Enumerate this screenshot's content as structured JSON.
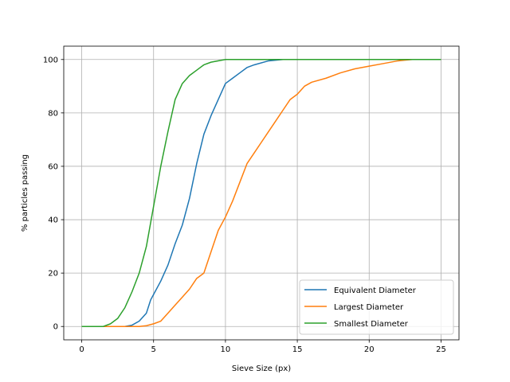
{
  "chart_data": {
    "type": "line",
    "xlabel": "Sieve Size (px)",
    "ylabel": "% particles passing",
    "xlim": [
      -1.25,
      26.25
    ],
    "ylim": [
      -5,
      105
    ],
    "xticks": [
      0,
      5,
      10,
      15,
      20,
      25
    ],
    "yticks": [
      0,
      20,
      40,
      60,
      80,
      100
    ],
    "grid": true,
    "legend_position": "lower right",
    "series": [
      {
        "name": "Equivalent Diameter",
        "color": "#1f77b4",
        "points": [
          [
            0,
            0
          ],
          [
            1,
            0
          ],
          [
            2,
            0
          ],
          [
            3,
            0
          ],
          [
            3.5,
            0.5
          ],
          [
            4,
            2
          ],
          [
            4.5,
            5
          ],
          [
            4.8,
            10
          ],
          [
            5,
            12
          ],
          [
            5.5,
            17
          ],
          [
            6,
            23
          ],
          [
            6.5,
            31
          ],
          [
            7,
            38
          ],
          [
            7.5,
            48
          ],
          [
            8,
            61
          ],
          [
            8.5,
            72
          ],
          [
            9,
            79
          ],
          [
            9.5,
            85
          ],
          [
            10,
            91
          ],
          [
            10.5,
            93
          ],
          [
            11,
            95
          ],
          [
            11.5,
            97
          ],
          [
            12,
            98
          ],
          [
            13,
            99.5
          ],
          [
            14,
            100
          ],
          [
            25,
            100
          ]
        ]
      },
      {
        "name": "Largest Diameter",
        "color": "#ff7f0e",
        "points": [
          [
            0,
            0
          ],
          [
            2,
            0
          ],
          [
            4,
            0
          ],
          [
            4.5,
            0.3
          ],
          [
            5,
            1
          ],
          [
            5.5,
            2
          ],
          [
            6,
            5
          ],
          [
            6.5,
            8
          ],
          [
            7,
            11
          ],
          [
            7.5,
            14
          ],
          [
            8,
            18
          ],
          [
            8.5,
            20
          ],
          [
            9,
            28
          ],
          [
            9.5,
            36
          ],
          [
            10,
            41
          ],
          [
            10.5,
            47
          ],
          [
            11,
            54
          ],
          [
            11.5,
            61
          ],
          [
            12,
            65
          ],
          [
            12.5,
            69
          ],
          [
            13,
            73
          ],
          [
            13.5,
            77
          ],
          [
            14,
            81
          ],
          [
            14.5,
            85
          ],
          [
            15,
            87
          ],
          [
            15.5,
            90
          ],
          [
            16,
            91.5
          ],
          [
            17,
            93
          ],
          [
            18,
            95
          ],
          [
            19,
            96.5
          ],
          [
            20,
            97.5
          ],
          [
            21,
            98.5
          ],
          [
            22,
            99.5
          ],
          [
            23,
            100
          ],
          [
            25,
            100
          ]
        ]
      },
      {
        "name": "Smallest Diameter",
        "color": "#2ca02c",
        "points": [
          [
            0,
            0
          ],
          [
            1,
            0
          ],
          [
            1.5,
            0
          ],
          [
            2,
            1
          ],
          [
            2.5,
            3
          ],
          [
            3,
            7
          ],
          [
            3.5,
            13
          ],
          [
            4,
            20
          ],
          [
            4.5,
            30
          ],
          [
            5,
            45
          ],
          [
            5.5,
            60
          ],
          [
            6,
            73
          ],
          [
            6.5,
            85
          ],
          [
            7,
            91
          ],
          [
            7.5,
            94
          ],
          [
            8,
            96
          ],
          [
            8.5,
            98
          ],
          [
            9,
            99
          ],
          [
            10,
            100
          ],
          [
            25,
            100
          ]
        ]
      }
    ]
  }
}
